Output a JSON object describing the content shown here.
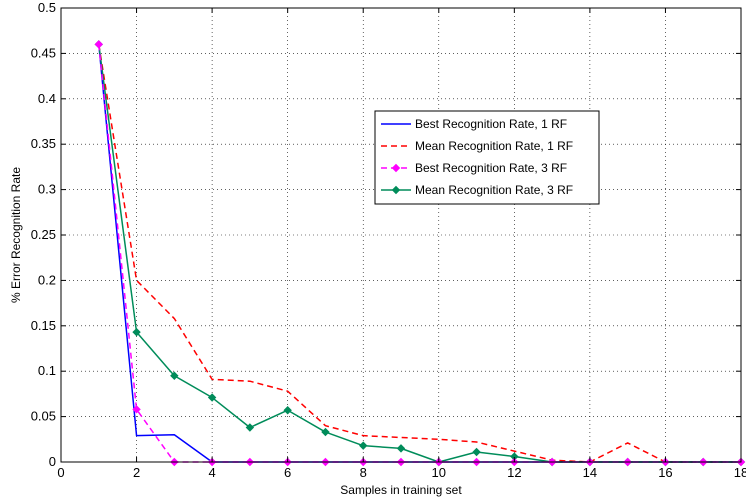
{
  "chart_data": {
    "type": "line",
    "title": "",
    "xlabel": "Samples in training set",
    "ylabel": "% Error Recognition Rate",
    "xlim": [
      0,
      18
    ],
    "ylim": [
      0,
      0.5
    ],
    "xticks": [
      0,
      2,
      4,
      6,
      8,
      10,
      12,
      14,
      16,
      18
    ],
    "xtick_labels": [
      "0",
      "2",
      "4",
      "6",
      "8",
      "10",
      "12",
      "14",
      "16",
      "18"
    ],
    "yticks": [
      0,
      0.05,
      0.1,
      0.15,
      0.2,
      0.25,
      0.3,
      0.35,
      0.4,
      0.45,
      0.5
    ],
    "ytick_labels": [
      "0",
      "0.05",
      "0.1",
      "0.15",
      "0.2",
      "0.25",
      "0.3",
      "0.35",
      "0.4",
      "0.45",
      "0.5"
    ],
    "grid": true,
    "legend_position": "upper-right",
    "series": [
      {
        "name": "Best Recognition Rate, 1 RF",
        "color": "#0000ff",
        "style": "solid",
        "marker": "none",
        "x": [
          1,
          2,
          3,
          4,
          5,
          6,
          7,
          8,
          9,
          10,
          11,
          12,
          13,
          14,
          15,
          16,
          17,
          18
        ],
        "y": [
          0.46,
          0.029,
          0.03,
          0,
          0,
          0,
          0,
          0,
          0,
          0,
          0,
          0,
          0,
          0,
          0,
          0,
          0,
          0
        ]
      },
      {
        "name": "Mean Recognition Rate, 1 RF",
        "color": "#ff0000",
        "style": "dashed",
        "marker": "none",
        "x": [
          1,
          2,
          3,
          4,
          5,
          6,
          7,
          8,
          9,
          10,
          11,
          12,
          13,
          14,
          15,
          16,
          17,
          18
        ],
        "y": [
          0.46,
          0.2,
          0.158,
          0.091,
          0.089,
          0.078,
          0.04,
          0.029,
          0.027,
          0.025,
          0.022,
          0.012,
          0.002,
          0,
          0.021,
          0,
          0,
          0
        ]
      },
      {
        "name": "Best Recognition Rate, 3 RF",
        "color": "#ff00ff",
        "style": "dashed",
        "marker": "diamond",
        "x": [
          1,
          2,
          3,
          4,
          5,
          6,
          7,
          8,
          9,
          10,
          11,
          12,
          13,
          14,
          15,
          16,
          17,
          18
        ],
        "y": [
          0.46,
          0.058,
          0,
          0,
          0,
          0,
          0,
          0,
          0,
          0,
          0,
          0,
          0,
          0,
          0,
          0,
          0,
          0
        ]
      },
      {
        "name": "Mean Recognition Rate, 3 RF",
        "color": "#008c5a",
        "style": "solid",
        "marker": "diamond",
        "x": [
          1,
          2,
          3,
          4,
          5,
          6,
          7,
          8,
          9,
          10,
          11,
          12,
          13,
          14,
          15,
          16,
          17,
          18
        ],
        "y": [
          0.46,
          0.143,
          0.095,
          0.071,
          0.038,
          0.057,
          0.033,
          0.018,
          0.015,
          0,
          0.011,
          0.006,
          0,
          0,
          0,
          0,
          0,
          0
        ]
      }
    ]
  }
}
